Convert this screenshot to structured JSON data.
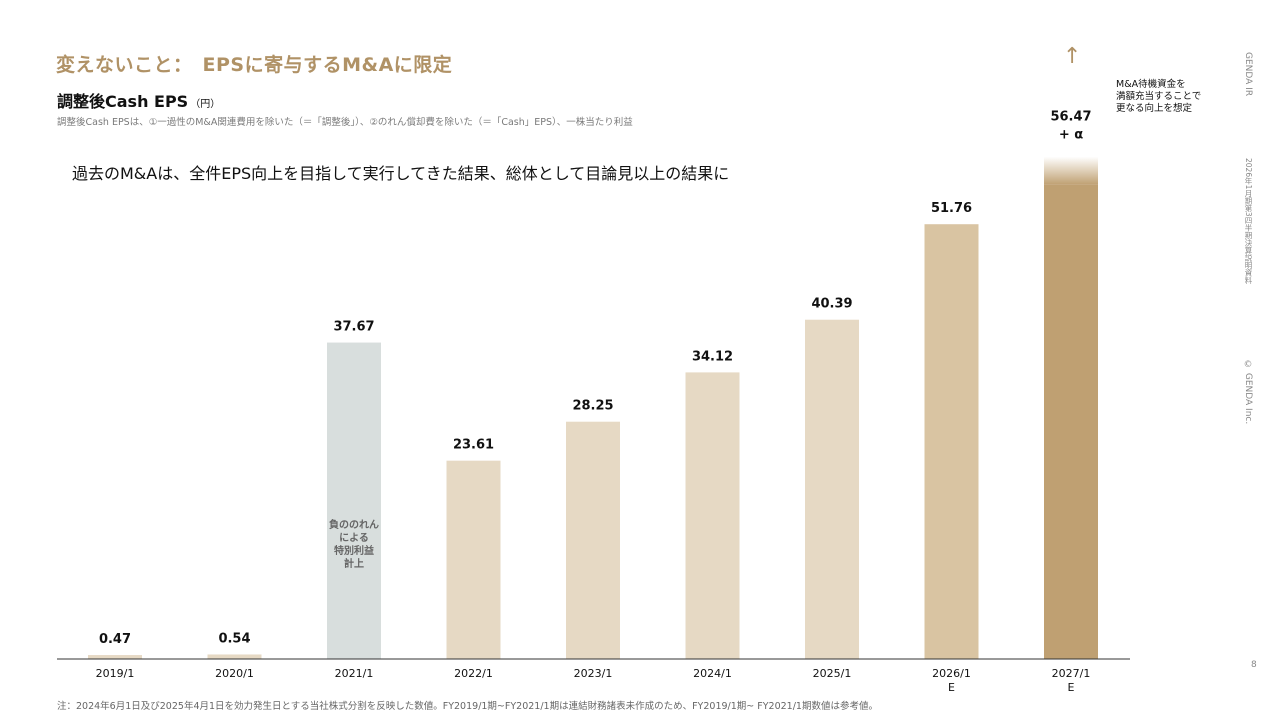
{
  "header": {
    "title": "変えないこと：　EPSに寄与するM&Aに限定",
    "subtitle": "調整後Cash EPS",
    "subtitle_unit": "（円）",
    "definition": "調整後Cash EPSは、①一過性のM&A関連費用を除いた（＝「調整後」）、②のれん償却費を除いた（＝「Cash」EPS）、一株当たり利益"
  },
  "message": "過去のM&Aは、全件EPS向上を目指して実行してきた結果、総体として目論見以上の結果に",
  "annotation": "M&A待機資金を\n満額充当することで\n更なる向上を想定",
  "footnote": "注：2024年6月1日及び2025年4月1日を効力発生日とする当社株式分割を反映した数値。FY2019/1期~FY2021/1期は連結財務諸表未作成のため、FY2019/1期~ FY2021/1期数値は参考値。",
  "side": {
    "brand": "GENDA IR",
    "report": "2026年1月期第3四半期決算説明資料",
    "copyright": "© GENDA Inc."
  },
  "page_number": "8",
  "colors": {
    "accent": "#b09266",
    "bar_light": "#e6d9c4",
    "bar_mid": "#d9c4a2",
    "bar_dark": "#bfa072",
    "bar_grey": "#d8dedd"
  },
  "chart_data": {
    "type": "bar",
    "title": "調整後Cash EPS",
    "ylabel": "（円）",
    "categories": [
      "2019/1",
      "2020/1",
      "2021/1",
      "2022/1",
      "2023/1",
      "2024/1",
      "2025/1",
      "2026/1\nE",
      "2027/1\nE"
    ],
    "values": [
      0.47,
      0.54,
      37.67,
      23.61,
      28.25,
      34.12,
      40.39,
      51.76,
      56.47
    ],
    "value_labels": [
      "0.47",
      "0.54",
      "37.67",
      "23.61",
      "28.25",
      "34.12",
      "40.39",
      "51.76",
      "56.47\n+ α"
    ],
    "bar_styles": [
      "light",
      "light",
      "grey",
      "light",
      "light",
      "light",
      "light",
      "mid",
      "dark"
    ],
    "bar_notes": {
      "2": "負ののれん\nによる\n特別利益\n計上"
    },
    "ylim": [
      0,
      60
    ],
    "grid": false,
    "legend": "none"
  }
}
